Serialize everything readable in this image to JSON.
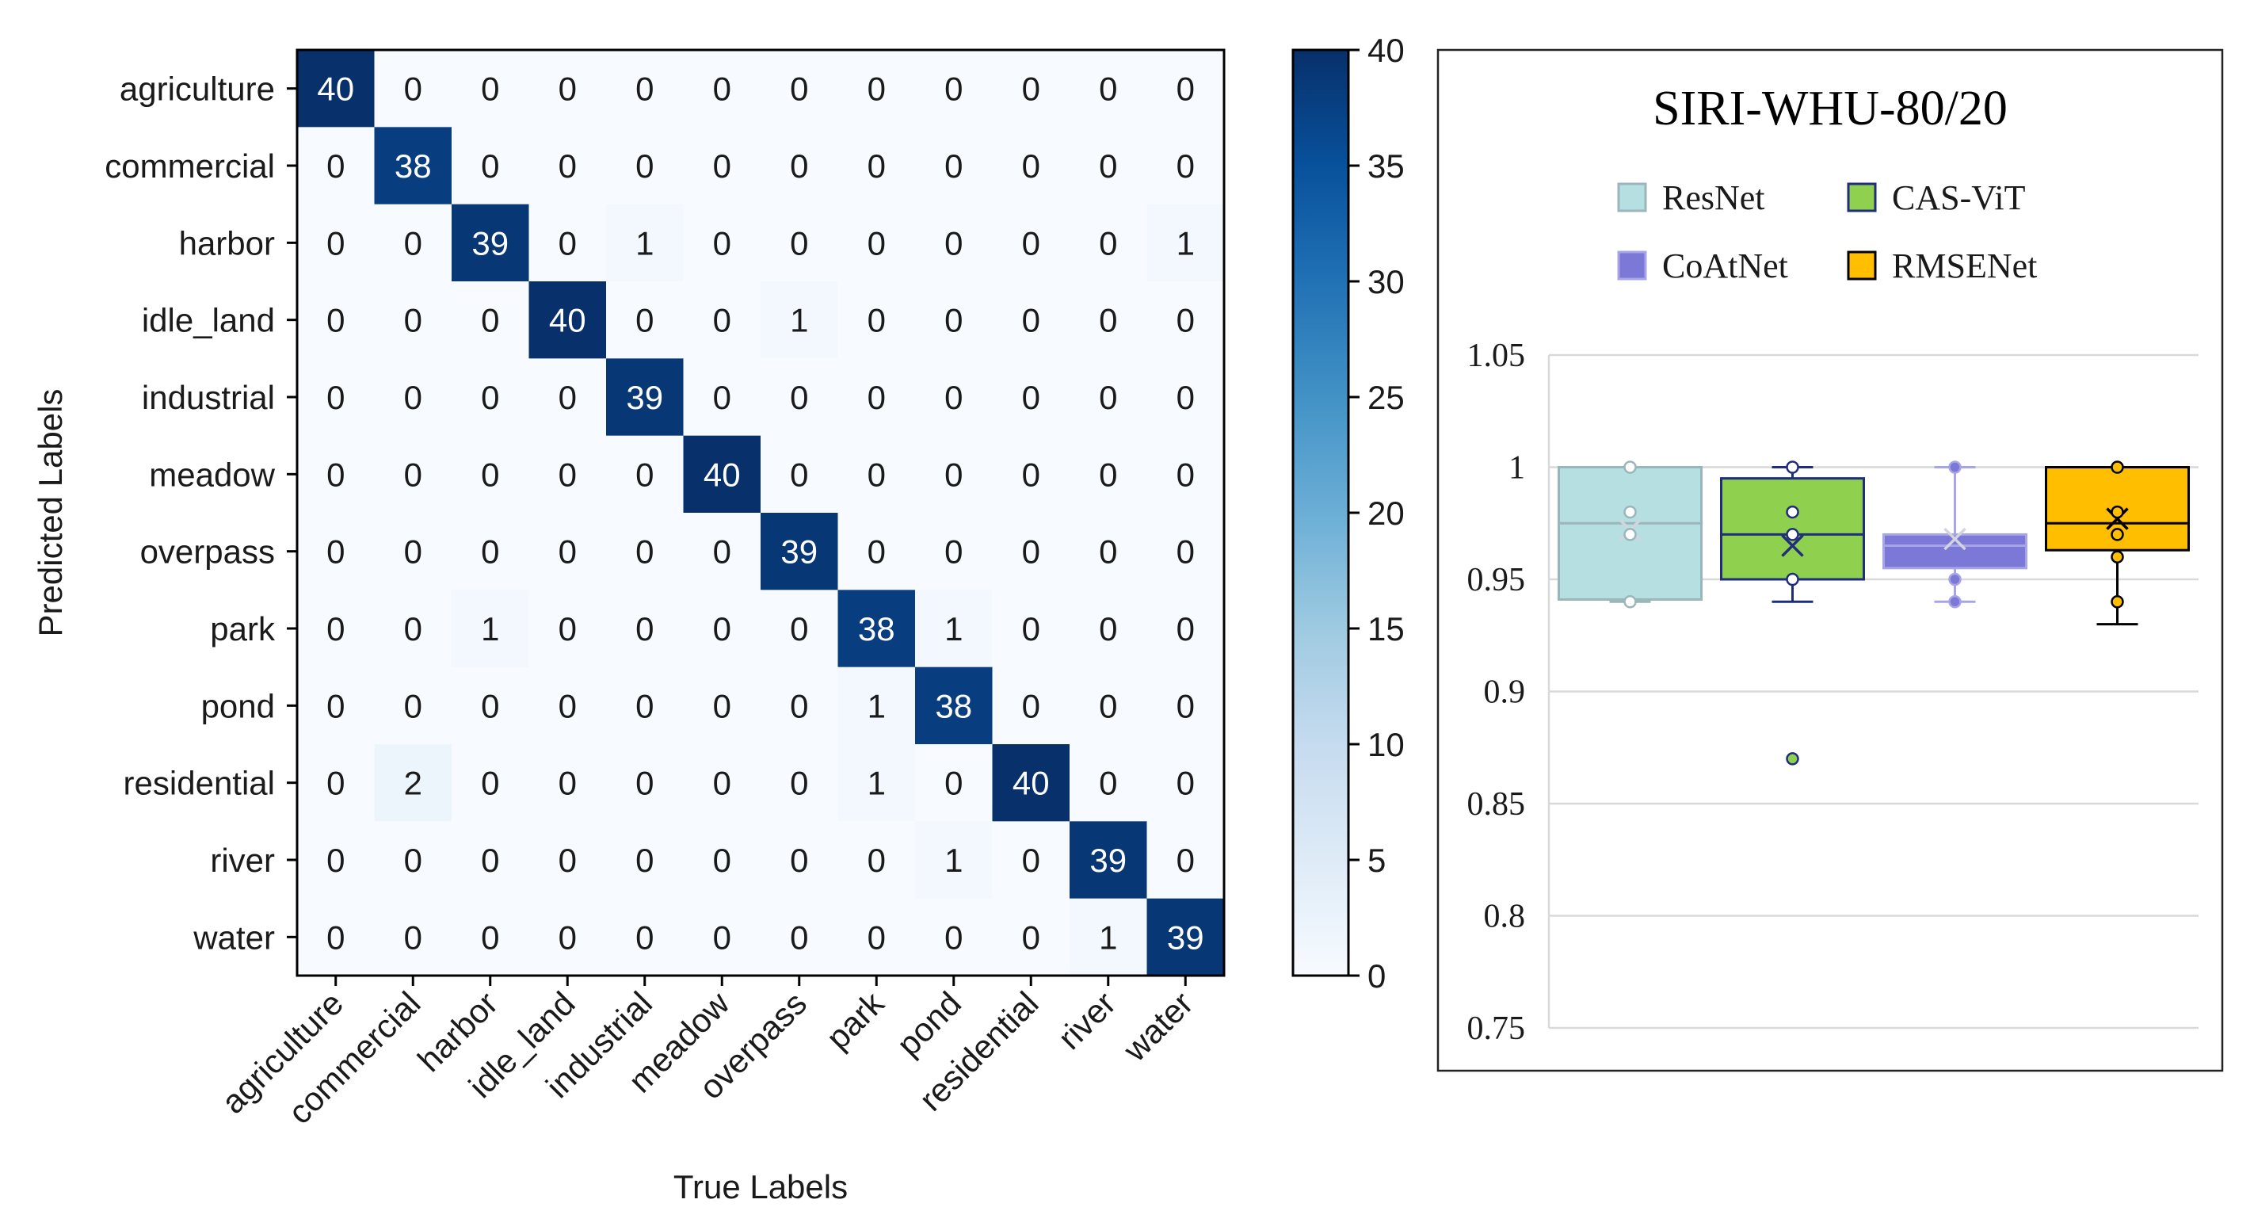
{
  "chart_data": [
    {
      "type": "heatmap",
      "xlabel": "True Labels",
      "ylabel": "Predicted Labels",
      "x_categories": [
        "agriculture",
        "commercial",
        "harbor",
        "idle_land",
        "industrial",
        "meadow",
        "overpass",
        "park",
        "pond",
        "residential",
        "river",
        "water"
      ],
      "y_categories": [
        "agriculture",
        "commercial",
        "harbor",
        "idle_land",
        "industrial",
        "meadow",
        "overpass",
        "park",
        "pond",
        "residential",
        "river",
        "water"
      ],
      "matrix": [
        [
          40,
          0,
          0,
          0,
          0,
          0,
          0,
          0,
          0,
          0,
          0,
          0
        ],
        [
          0,
          38,
          0,
          0,
          0,
          0,
          0,
          0,
          0,
          0,
          0,
          0
        ],
        [
          0,
          0,
          39,
          0,
          1,
          0,
          0,
          0,
          0,
          0,
          0,
          1
        ],
        [
          0,
          0,
          0,
          40,
          0,
          0,
          1,
          0,
          0,
          0,
          0,
          0
        ],
        [
          0,
          0,
          0,
          0,
          39,
          0,
          0,
          0,
          0,
          0,
          0,
          0
        ],
        [
          0,
          0,
          0,
          0,
          0,
          40,
          0,
          0,
          0,
          0,
          0,
          0
        ],
        [
          0,
          0,
          0,
          0,
          0,
          0,
          39,
          0,
          0,
          0,
          0,
          0
        ],
        [
          0,
          0,
          1,
          0,
          0,
          0,
          0,
          38,
          1,
          0,
          0,
          0
        ],
        [
          0,
          0,
          0,
          0,
          0,
          0,
          0,
          1,
          38,
          0,
          0,
          0
        ],
        [
          0,
          2,
          0,
          0,
          0,
          0,
          0,
          1,
          0,
          40,
          0,
          0
        ],
        [
          0,
          0,
          0,
          0,
          0,
          0,
          0,
          0,
          1,
          0,
          39,
          0
        ],
        [
          0,
          0,
          0,
          0,
          0,
          0,
          0,
          0,
          0,
          0,
          1,
          39
        ]
      ],
      "colorbar": {
        "min": 0,
        "max": 40,
        "ticks": [
          0,
          5,
          10,
          15,
          20,
          25,
          30,
          35,
          40
        ],
        "colormap": "Blues"
      }
    },
    {
      "type": "box",
      "title": "SIRI-WHU-80/20",
      "ylim": [
        0.75,
        1.05
      ],
      "yticks": [
        0.75,
        0.8,
        0.85,
        0.9,
        0.95,
        1,
        1.05
      ],
      "ytick_labels": [
        "0.75",
        "0.8",
        "0.85",
        "0.9",
        "0.95",
        "1",
        "1.05"
      ],
      "legend_position": "top",
      "series": [
        {
          "name": "ResNet",
          "fill": "#b5dfe0",
          "stroke": "#9bb6bb",
          "whisker_low": 0.94,
          "q1": 0.941,
          "median": 0.975,
          "q3": 1.0,
          "whisker_high": 1.0,
          "mean": 0.972,
          "points": [
            1.0,
            0.98,
            0.97,
            0.94
          ],
          "outliers": []
        },
        {
          "name": "CAS-ViT",
          "fill": "#8fd14f",
          "stroke": "#1f2d7a",
          "whisker_low": 0.94,
          "q1": 0.95,
          "median": 0.97,
          "q3": 0.995,
          "whisker_high": 1.0,
          "mean": 0.965,
          "points": [
            1.0,
            0.98,
            0.97,
            0.95
          ],
          "outliers": [
            0.87
          ]
        },
        {
          "name": "CoAtNet",
          "fill": "#7b78d8",
          "stroke": "#a7a5e6",
          "whisker_low": 0.94,
          "q1": 0.955,
          "median": 0.965,
          "q3": 0.97,
          "whisker_high": 1.0,
          "mean": 0.968,
          "points": [
            1.0,
            0.95,
            0.94
          ],
          "outliers": []
        },
        {
          "name": "RMSENet",
          "fill": "#ffbf00",
          "stroke": "#000000",
          "whisker_low": 0.93,
          "q1": 0.963,
          "median": 0.975,
          "q3": 1.0,
          "whisker_high": 1.0,
          "mean": 0.977,
          "points": [
            1.0,
            0.98,
            0.97,
            0.96,
            0.94
          ],
          "outliers": []
        }
      ]
    }
  ]
}
